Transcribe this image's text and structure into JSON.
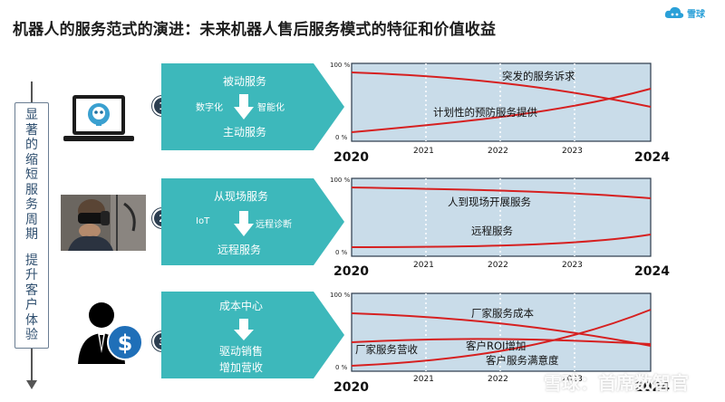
{
  "header": {
    "title": "机器人的服务范式的演进：未来机器人售后服务模式的特征和价值收益",
    "logo_text": "雪球",
    "brand_color": "#2aa0d8"
  },
  "side": {
    "text1": "显著的缩短服务周期",
    "text2": "提升客户体验"
  },
  "colors": {
    "panel": "#3db8bb",
    "chart_bg": "#c9dce9",
    "chart_border": "#2b3a4a",
    "curve": "#d62020"
  },
  "rows": [
    {
      "number": "1",
      "image_icon": "laptop-robot-icon",
      "top_label": "被动服务",
      "left_label": "数字化",
      "right_label": "智能化",
      "bottom_label": "主动服务",
      "chart": {
        "y_top": "100 %",
        "y_bottom": "0 %",
        "label_a": "突发的服务诉求",
        "label_b": "计划性的预防服务提供"
      }
    },
    {
      "number": "2",
      "image_icon": "vr-headset-photo",
      "top_label": "从现场服务",
      "left_label": "IoT",
      "right_label": "远程诊断",
      "bottom_label": "远程服务",
      "chart": {
        "y_top": "100 %",
        "y_bottom": "0 %",
        "label_a": "人到现场开展服务",
        "label_b": "远程服务"
      }
    },
    {
      "number": "3",
      "image_icon": "businessman-dollar-icon",
      "top_label": "成本中心",
      "left_label": "",
      "right_label": "",
      "bottom_label": "驱动销售",
      "bottom_label2": "增加营收",
      "chart": {
        "y_top": "100 %",
        "y_bottom": "0 %",
        "label_a": "厂家服务成本",
        "label_b": "厂家服务营收",
        "label_c": "客户ROI增加",
        "label_d": "客户服务满意度"
      }
    }
  ],
  "years": {
    "start": "2020",
    "y1": "2021",
    "y2": "2022",
    "y3": "2023",
    "end": "2024"
  },
  "watermark": "雪球：首席数智官"
}
